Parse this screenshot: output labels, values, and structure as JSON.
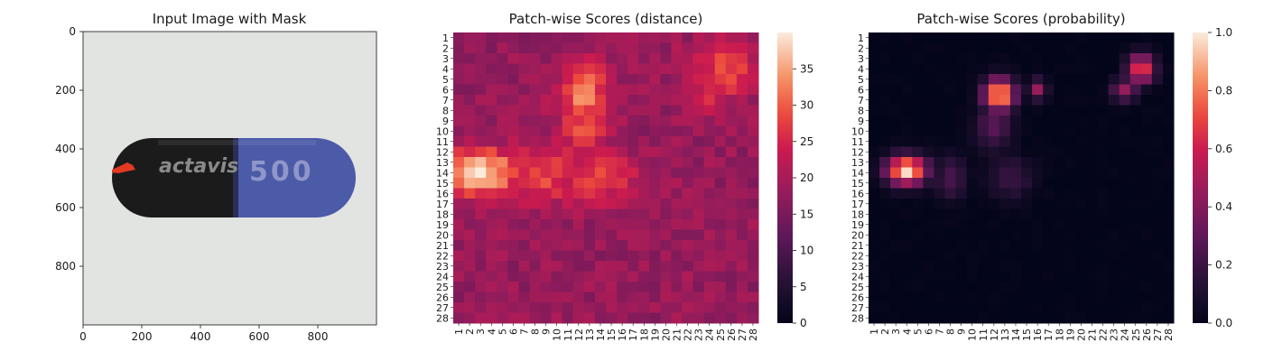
{
  "chart_data": [
    {
      "type": "image",
      "title": "Input Image with Mask",
      "xlim": [
        0,
        1000
      ],
      "ylim": [
        1000,
        0
      ],
      "xticks": [
        0,
        200,
        400,
        600,
        800
      ],
      "yticks": [
        0,
        200,
        400,
        600,
        800
      ],
      "image": {
        "description_terms": [
          "capsule"
        ],
        "logo_text": "actavis",
        "capsule_text": "500",
        "colors": {
          "background": "#e2e4e2",
          "black_half": "#1a1a1a",
          "blue_half": "#4a5aa6",
          "mask": "#e23a22"
        }
      }
    },
    {
      "type": "heatmap",
      "title": "Patch-wise Scores (distance)",
      "rows": 28,
      "cols": 28,
      "row_labels": [
        "1",
        "2",
        "3",
        "4",
        "5",
        "6",
        "7",
        "8",
        "9",
        "10",
        "11",
        "12",
        "13",
        "14",
        "15",
        "16",
        "17",
        "18",
        "19",
        "20",
        "21",
        "22",
        "23",
        "24",
        "25",
        "26",
        "27",
        "28"
      ],
      "col_labels": [
        "1",
        "2",
        "3",
        "4",
        "5",
        "6",
        "7",
        "8",
        "9",
        "10",
        "11",
        "12",
        "13",
        "14",
        "15",
        "16",
        "17",
        "18",
        "19",
        "20",
        "21",
        "22",
        "23",
        "24",
        "25",
        "26",
        "27",
        "28"
      ],
      "colorbar": {
        "min": 0,
        "max": 40,
        "ticks": [
          0,
          5,
          10,
          15,
          20,
          25,
          30,
          35
        ],
        "colormap": "rocket"
      },
      "base_value": 18,
      "hotspots": [
        {
          "row": 14,
          "col": 3,
          "value": 39,
          "spread_r": 1.6,
          "spread_c": 2.4
        },
        {
          "row": 14,
          "col": 9,
          "value": 28,
          "spread_r": 2.0,
          "spread_c": 3.0
        },
        {
          "row": 6.5,
          "col": 12.5,
          "value": 33,
          "spread_r": 2.2,
          "spread_c": 1.6
        },
        {
          "row": 10,
          "col": 12.5,
          "value": 28,
          "spread_r": 2.5,
          "spread_c": 1.6
        },
        {
          "row": 14.5,
          "col": 13.5,
          "value": 28,
          "spread_r": 1.8,
          "spread_c": 3.0
        },
        {
          "row": 4,
          "col": 25.5,
          "value": 29,
          "spread_r": 2.0,
          "spread_c": 2.0
        },
        {
          "row": 6.5,
          "col": 24,
          "value": 25,
          "spread_r": 1.4,
          "spread_c": 1.6
        }
      ]
    },
    {
      "type": "heatmap",
      "title": "Patch-wise Scores (probability)",
      "rows": 28,
      "cols": 28,
      "row_labels": [
        "1",
        "2",
        "3",
        "4",
        "5",
        "6",
        "7",
        "8",
        "9",
        "10",
        "11",
        "12",
        "13",
        "14",
        "15",
        "16",
        "17",
        "18",
        "19",
        "20",
        "21",
        "22",
        "23",
        "24",
        "25",
        "26",
        "27",
        "28"
      ],
      "col_labels": [
        "1",
        "2",
        "3",
        "4",
        "5",
        "6",
        "7",
        "8",
        "9",
        "10",
        "11",
        "12",
        "13",
        "14",
        "15",
        "16",
        "17",
        "18",
        "19",
        "20",
        "21",
        "22",
        "23",
        "24",
        "25",
        "26",
        "27",
        "28"
      ],
      "colorbar": {
        "min": 0.0,
        "max": 1.0,
        "ticks": [
          0.0,
          0.2,
          0.4,
          0.6,
          0.8,
          1.0
        ],
        "tick_labels": [
          "0.0",
          "0.2",
          "0.4",
          "0.6",
          "0.8",
          "1.0"
        ],
        "colormap": "rocket"
      },
      "base_value": 0.0,
      "hotspots": [
        {
          "row": 13.8,
          "col": 4,
          "value": 1.0,
          "spread_r": 1.0,
          "spread_c": 1.3
        },
        {
          "row": 6.5,
          "col": 12.5,
          "value": 0.95,
          "spread_r": 1.1,
          "spread_c": 1.0
        },
        {
          "row": 4,
          "col": 25.5,
          "value": 0.72,
          "spread_r": 1.0,
          "spread_c": 0.9
        },
        {
          "row": 6,
          "col": 24,
          "value": 0.45,
          "spread_r": 0.8,
          "spread_c": 0.8
        },
        {
          "row": 14.5,
          "col": 8,
          "value": 0.25,
          "spread_r": 1.5,
          "spread_c": 1.0
        },
        {
          "row": 14.5,
          "col": 13.5,
          "value": 0.2,
          "spread_r": 1.5,
          "spread_c": 1.5
        },
        {
          "row": 9.5,
          "col": 12,
          "value": 0.3,
          "spread_r": 1.6,
          "spread_c": 1.2
        },
        {
          "row": 6,
          "col": 16,
          "value": 0.45,
          "spread_r": 0.7,
          "spread_c": 0.6
        }
      ]
    }
  ]
}
